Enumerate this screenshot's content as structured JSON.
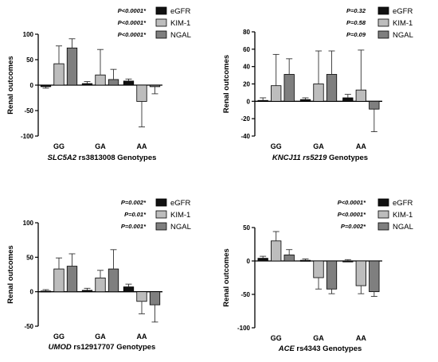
{
  "chart_data": [
    {
      "type": "bar",
      "ylabel": "Renal outcomes",
      "xlabel": {
        "gene": "SLC5A2",
        "rest": " rs3813008 Genotypes"
      },
      "categories": [
        "GG",
        "GA",
        "AA"
      ],
      "ylim": [
        -100,
        100
      ],
      "yticks": [
        100,
        50,
        0,
        -50,
        -100
      ],
      "series": [
        {
          "name": "eGFR",
          "color": "#111111",
          "values": [
            -3,
            3,
            8
          ],
          "err": [
            3,
            4,
            4
          ]
        },
        {
          "name": "KIM-1",
          "color": "#bdbdbd",
          "values": [
            42,
            20,
            -32
          ],
          "err": [
            35,
            50,
            50
          ]
        },
        {
          "name": "NGAL",
          "color": "#7f7f7f",
          "values": [
            73,
            11,
            -3
          ],
          "err": [
            18,
            20,
            14
          ]
        }
      ],
      "pvalues": [
        "P<0.0001*",
        "P<0.0001*",
        "P<0.0001*"
      ]
    },
    {
      "type": "bar",
      "ylabel": "Renal outcomes",
      "xlabel": {
        "gene": "KNCJ11 rs5219",
        "rest": " Genotypes"
      },
      "categories": [
        "GG",
        "GA",
        "AA"
      ],
      "ylim": [
        -40,
        80
      ],
      "yticks": [
        80,
        60,
        40,
        20,
        0,
        -20,
        -40
      ],
      "series": [
        {
          "name": "eGFR",
          "color": "#111111",
          "values": [
            1,
            2,
            4
          ],
          "err": [
            3,
            2,
            4
          ]
        },
        {
          "name": "KIM-1",
          "color": "#bdbdbd",
          "values": [
            18,
            20,
            13
          ],
          "err": [
            36,
            38,
            46
          ]
        },
        {
          "name": "NGAL",
          "color": "#7f7f7f",
          "values": [
            31,
            31,
            -9
          ],
          "err": [
            18,
            27,
            26
          ]
        }
      ],
      "pvalues": [
        "P=0.32",
        "P=0.58",
        "P=0.09"
      ]
    },
    {
      "type": "bar",
      "ylabel": "Renal outcomes",
      "xlabel": {
        "gene": "UMOD",
        "rest": " rs12917707 Genotypes"
      },
      "categories": [
        "GG",
        "GA",
        "AA"
      ],
      "ylim": [
        -50,
        100
      ],
      "yticks": [
        100,
        50,
        0,
        -50
      ],
      "series": [
        {
          "name": "eGFR",
          "color": "#111111",
          "values": [
            1,
            2,
            7
          ],
          "err": [
            2,
            3,
            4
          ]
        },
        {
          "name": "KIM-1",
          "color": "#bdbdbd",
          "values": [
            33,
            20,
            -14
          ],
          "err": [
            16,
            11,
            18
          ]
        },
        {
          "name": "NGAL",
          "color": "#7f7f7f",
          "values": [
            37,
            33,
            -19
          ],
          "err": [
            18,
            28,
            25
          ]
        }
      ],
      "pvalues": [
        "P=0.002*",
        "P=0.01*",
        "P=0.001*"
      ]
    },
    {
      "type": "bar",
      "ylabel": "Renal outcomes",
      "xlabel": {
        "gene": "ACE",
        "rest": " rs4343 Genotypes"
      },
      "categories": [
        "GG",
        "GA",
        "AA"
      ],
      "ylim": [
        -100,
        50
      ],
      "yticks": [
        50,
        0,
        -50,
        -100
      ],
      "series": [
        {
          "name": "eGFR",
          "color": "#111111",
          "values": [
            4,
            1,
            0
          ],
          "err": [
            3,
            2,
            2
          ]
        },
        {
          "name": "KIM-1",
          "color": "#bdbdbd",
          "values": [
            30,
            -25,
            -37
          ],
          "err": [
            14,
            17,
            12
          ]
        },
        {
          "name": "NGAL",
          "color": "#7f7f7f",
          "values": [
            9,
            -42,
            -46
          ],
          "err": [
            8,
            7,
            7
          ]
        }
      ],
      "pvalues": [
        "P<0.0001*",
        "P<0.0001*",
        "P=0.002*"
      ]
    }
  ]
}
